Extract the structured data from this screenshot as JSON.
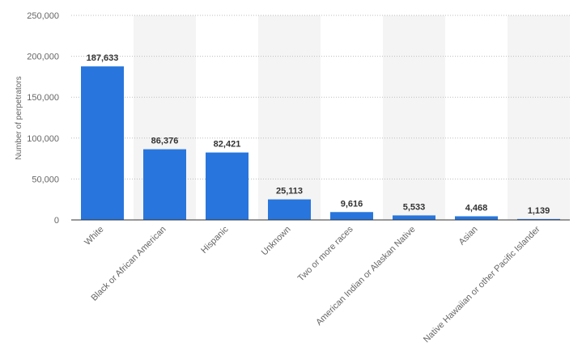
{
  "chart_data": {
    "type": "bar",
    "categories": [
      "White",
      "Black or African American",
      "Hispanic",
      "Unknown",
      "Two or more races",
      "American Indian or Alaskan Native",
      "Asian",
      "Native Hawaiian or other Pacific Islander"
    ],
    "values": [
      187633,
      86376,
      82421,
      25113,
      9616,
      5533,
      4468,
      1139
    ],
    "value_labels": [
      "187,633",
      "86,376",
      "82,421",
      "25,113",
      "9,616",
      "5,533",
      "4,468",
      "1,139"
    ],
    "ylabel": "Number of perpetrators",
    "ylim": [
      0,
      250000
    ],
    "yticks": [
      0,
      50000,
      100000,
      150000,
      200000,
      250000
    ],
    "ytick_labels": [
      "0",
      "50,000",
      "100,000",
      "150,000",
      "200,000",
      "250,000"
    ],
    "grid": true,
    "bar_color": "#2876dd",
    "legend": "none"
  }
}
